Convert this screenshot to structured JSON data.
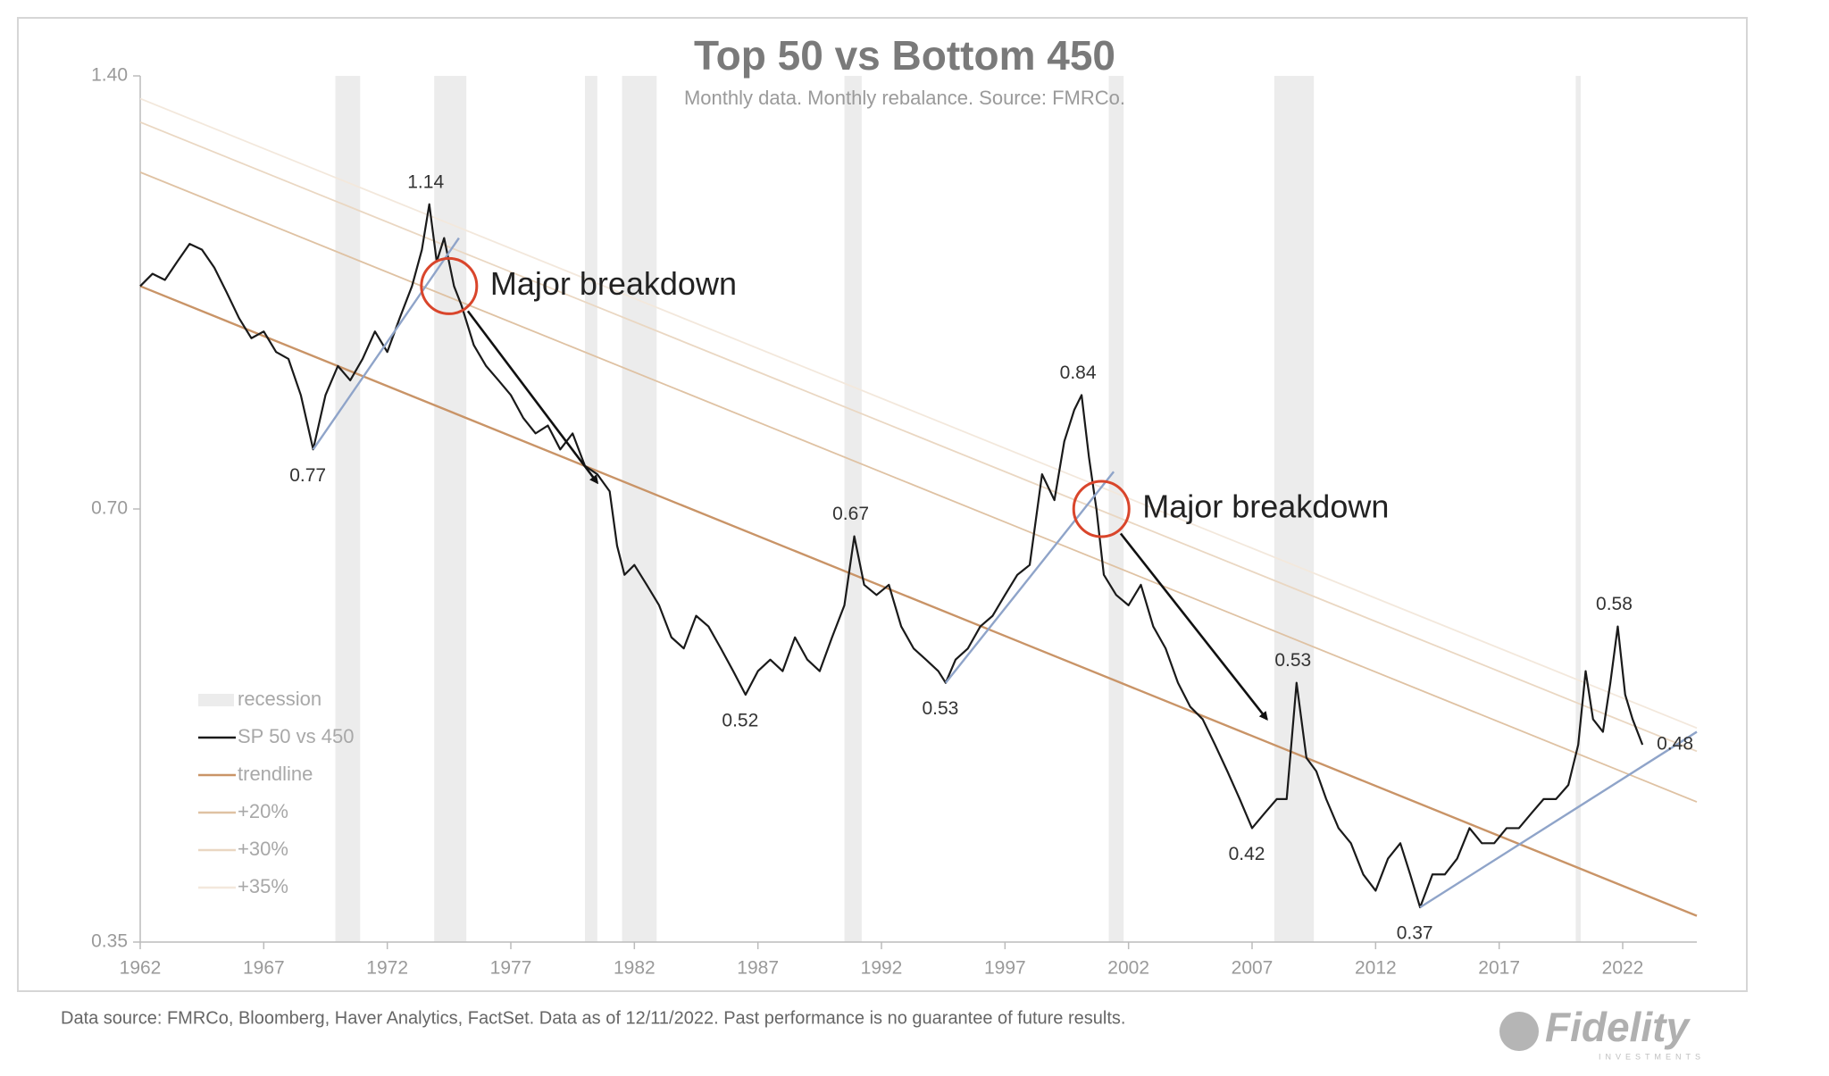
{
  "chart_data": {
    "type": "line",
    "title": "Top 50 vs Bottom 450",
    "subtitle": "Monthly data.  Monthly rebalance. Source: FMRCo.",
    "log_scale": true,
    "xlim": [
      1962,
      2025
    ],
    "xticks": [
      1962,
      1967,
      1972,
      1977,
      1982,
      1987,
      1992,
      1997,
      2002,
      2007,
      2012,
      2017,
      2022
    ],
    "ylim": [
      0.35,
      1.4
    ],
    "yticks": [
      {
        "value": 0.35,
        "label": "0.35"
      },
      {
        "value": 0.7,
        "label": "0.70"
      },
      {
        "value": 1.4,
        "label": "1.40"
      }
    ],
    "recessions": {
      "name": "recession",
      "color": "#ececec",
      "periods": [
        [
          1969.9,
          1970.9
        ],
        [
          1973.9,
          1975.2
        ],
        [
          1980.0,
          1980.5
        ],
        [
          1981.5,
          1982.9
        ],
        [
          1990.5,
          1991.2
        ],
        [
          2001.2,
          2001.8
        ],
        [
          2007.9,
          2009.5
        ],
        [
          2020.1,
          2020.3
        ]
      ]
    },
    "series": [
      {
        "name": "SP 50 vs 450",
        "color": "#1a1a1a",
        "x": [
          1962.0,
          1962.5,
          1963,
          1963.5,
          1964,
          1964.5,
          1965,
          1965.5,
          1966,
          1966.5,
          1967,
          1967.5,
          1968,
          1968.5,
          1969.0,
          1969.5,
          1970,
          1970.5,
          1971,
          1971.5,
          1972,
          1972.5,
          1973,
          1973.4,
          1973.7,
          1974.0,
          1974.3,
          1974.7,
          1975,
          1975.5,
          1976,
          1976.5,
          1977,
          1977.5,
          1978,
          1978.5,
          1979,
          1979.5,
          1980,
          1980.5,
          1981,
          1981.3,
          1981.6,
          1982,
          1982.5,
          1983,
          1983.5,
          1984,
          1984.5,
          1985,
          1985.5,
          1986,
          1986.5,
          1987,
          1987.5,
          1988,
          1988.5,
          1989,
          1989.5,
          1990,
          1990.5,
          1990.9,
          1991.3,
          1991.8,
          1992.3,
          1992.8,
          1993.3,
          1993.8,
          1994.3,
          1994.6,
          1995,
          1995.5,
          1996,
          1996.5,
          1997,
          1997.5,
          1998,
          1998.5,
          1999,
          1999.4,
          1999.8,
          2000.1,
          2000.4,
          2000.7,
          2001,
          2001.5,
          2002,
          2002.5,
          2003,
          2003.5,
          2004,
          2004.5,
          2005,
          2005.5,
          2006,
          2006.5,
          2007,
          2007.5,
          2008,
          2008.4,
          2008.8,
          2009.2,
          2009.6,
          2010,
          2010.5,
          2011,
          2011.5,
          2012,
          2012.5,
          2013,
          2013.4,
          2013.8,
          2014.3,
          2014.8,
          2015.3,
          2015.8,
          2016.3,
          2016.8,
          2017.3,
          2017.8,
          2018.3,
          2018.8,
          2019.3,
          2019.8,
          2020.2,
          2020.5,
          2020.8,
          2021.2,
          2021.5,
          2021.8,
          2022.1,
          2022.4,
          2022.8
        ],
        "values": [
          1.0,
          1.02,
          1.01,
          1.04,
          1.07,
          1.06,
          1.03,
          0.99,
          0.95,
          0.92,
          0.93,
          0.9,
          0.89,
          0.84,
          0.77,
          0.84,
          0.88,
          0.86,
          0.89,
          0.93,
          0.9,
          0.95,
          1.0,
          1.06,
          1.14,
          1.04,
          1.08,
          1.0,
          0.97,
          0.91,
          0.88,
          0.86,
          0.84,
          0.81,
          0.79,
          0.8,
          0.77,
          0.79,
          0.75,
          0.74,
          0.72,
          0.66,
          0.63,
          0.64,
          0.62,
          0.6,
          0.57,
          0.56,
          0.59,
          0.58,
          0.56,
          0.54,
          0.52,
          0.54,
          0.55,
          0.54,
          0.57,
          0.55,
          0.54,
          0.57,
          0.6,
          0.67,
          0.62,
          0.61,
          0.62,
          0.58,
          0.56,
          0.55,
          0.54,
          0.53,
          0.55,
          0.56,
          0.58,
          0.59,
          0.61,
          0.63,
          0.64,
          0.74,
          0.71,
          0.78,
          0.82,
          0.84,
          0.76,
          0.7,
          0.63,
          0.61,
          0.6,
          0.62,
          0.58,
          0.56,
          0.53,
          0.51,
          0.5,
          0.48,
          0.46,
          0.44,
          0.42,
          0.43,
          0.44,
          0.44,
          0.53,
          0.47,
          0.46,
          0.44,
          0.42,
          0.41,
          0.39,
          0.38,
          0.4,
          0.41,
          0.39,
          0.37,
          0.39,
          0.39,
          0.4,
          0.42,
          0.41,
          0.41,
          0.42,
          0.42,
          0.43,
          0.44,
          0.44,
          0.45,
          0.48,
          0.54,
          0.5,
          0.49,
          0.53,
          0.58,
          0.52,
          0.5,
          0.48
        ],
        "width": 2.2
      },
      {
        "name": "trendline",
        "color": "#c99467",
        "x": [
          1962,
          2025
        ],
        "values": [
          1.0,
          0.365
        ],
        "width": 2.4
      },
      {
        "name": "+20%",
        "color": "#dfc2a3",
        "x": [
          1962,
          2025
        ],
        "values": [
          1.2,
          0.438
        ],
        "width": 1.8
      },
      {
        "name": "+30%",
        "color": "#ead7c2",
        "x": [
          1962,
          2025
        ],
        "values": [
          1.3,
          0.475
        ],
        "width": 1.8
      },
      {
        "name": "+35%",
        "color": "#f3e8dc",
        "x": [
          1962,
          2025
        ],
        "values": [
          1.35,
          0.493
        ],
        "width": 1.8
      }
    ],
    "support_lines": {
      "color": "#8fa4c9",
      "lines": [
        {
          "x": [
            1969.0,
            1974.9
          ],
          "values": [
            0.77,
            1.08
          ]
        },
        {
          "x": [
            1994.6,
            2001.4
          ],
          "values": [
            0.53,
            0.743
          ]
        },
        {
          "x": [
            2013.8,
            2025.0
          ],
          "values": [
            0.37,
            0.49
          ]
        }
      ]
    },
    "peak_labels": [
      {
        "x": 1973.7,
        "value": 1.14
      },
      {
        "x": 1969.0,
        "value": 0.77
      },
      {
        "x": 1986.5,
        "value": 0.52
      },
      {
        "x": 1990.9,
        "value": 0.67
      },
      {
        "x": 1994.6,
        "value": 0.53
      },
      {
        "x": 2000.1,
        "value": 0.84
      },
      {
        "x": 2007.0,
        "value": 0.42
      },
      {
        "x": 2008.8,
        "value": 0.53
      },
      {
        "x": 2013.8,
        "value": 0.37
      },
      {
        "x": 2021.8,
        "value": 0.58
      },
      {
        "x": 2022.8,
        "value": 0.48
      }
    ],
    "annotations": [
      {
        "text": "Major breakdown",
        "x": 1974.5,
        "y": 1.0,
        "arrow_to": [
          1980.5,
          0.73
        ]
      },
      {
        "text": "Major breakdown",
        "x": 2000.9,
        "y": 0.7,
        "arrow_to": [
          2007.6,
          0.5
        ]
      }
    ],
    "circle_color": "#d9452b",
    "footnote": "Data source: FMRCo, Bloomberg, Haver Analytics, FactSet. Data as of 12/11/2022. Past performance is no guarantee of future results.",
    "logo": {
      "name": "Fidelity",
      "tagline": "INVESTMENTS"
    }
  }
}
